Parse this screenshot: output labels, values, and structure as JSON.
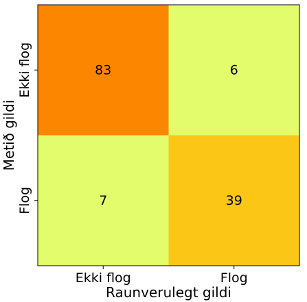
{
  "chart_data": {
    "type": "heatmap",
    "x_categories": [
      "Ekki flog",
      "Flog"
    ],
    "y_categories": [
      "Ekki flog",
      "Flog"
    ],
    "values": [
      [
        83,
        6
      ],
      [
        7,
        39
      ]
    ],
    "cell_labels": [
      [
        "83",
        "6"
      ],
      [
        "7",
        "39"
      ]
    ],
    "xlabel": "Raunverulegt gildi",
    "ylabel": "Metið gildi",
    "colormap": "Wistia",
    "cell_colors": [
      [
        "#fd8600",
        "#e3fc6b"
      ],
      [
        "#e3fc6b",
        "#fcc617"
      ]
    ],
    "grid": false,
    "legend": "none"
  }
}
